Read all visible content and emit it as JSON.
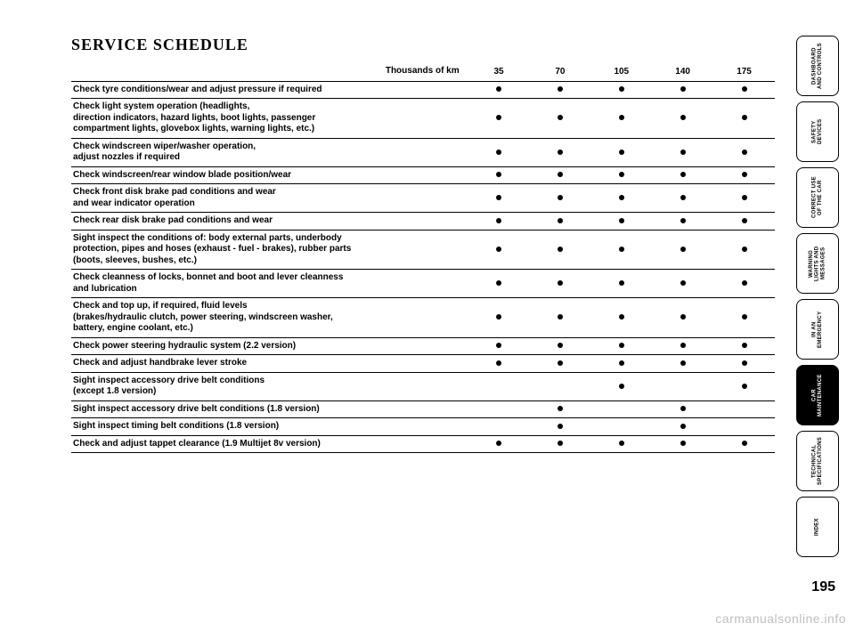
{
  "title": "SERVICE SCHEDULE",
  "header_label": "Thousands of km",
  "columns": [
    "35",
    "70",
    "105",
    "140",
    "175"
  ],
  "rows": [
    {
      "label": "Check tyre conditions/wear and adjust pressure if required",
      "marks": [
        1,
        1,
        1,
        1,
        1
      ]
    },
    {
      "label": "Check light system operation (headlights,\ndirection indicators, hazard lights, boot lights, passenger\ncompartment lights, glovebox lights, warning lights, etc.)",
      "marks": [
        1,
        1,
        1,
        1,
        1
      ]
    },
    {
      "label": "Check windscreen wiper/washer operation,\nadjust nozzles if required",
      "marks": [
        1,
        1,
        1,
        1,
        1
      ]
    },
    {
      "label": "Check windscreen/rear window blade position/wear",
      "marks": [
        1,
        1,
        1,
        1,
        1
      ]
    },
    {
      "label": "Check front disk brake pad conditions and wear\nand wear indicator operation",
      "marks": [
        1,
        1,
        1,
        1,
        1
      ]
    },
    {
      "label": "Check rear disk brake pad conditions and wear",
      "marks": [
        1,
        1,
        1,
        1,
        1
      ]
    },
    {
      "label": "Sight inspect the conditions of: body external parts, underbody\nprotection, pipes and hoses (exhaust - fuel - brakes), rubber parts\n(boots, sleeves, bushes, etc.)",
      "marks": [
        1,
        1,
        1,
        1,
        1
      ]
    },
    {
      "label": "Check cleanness of locks, bonnet and boot and lever cleanness\nand lubrication",
      "marks": [
        1,
        1,
        1,
        1,
        1
      ]
    },
    {
      "label": "Check and top up, if required, fluid levels\n(brakes/hydraulic clutch, power steering, windscreen washer,\nbattery, engine coolant, etc.)",
      "marks": [
        1,
        1,
        1,
        1,
        1
      ]
    },
    {
      "label": "Check power steering hydraulic system (2.2 version)",
      "marks": [
        1,
        1,
        1,
        1,
        1
      ]
    },
    {
      "label": "Check and adjust handbrake lever stroke",
      "marks": [
        1,
        1,
        1,
        1,
        1
      ]
    },
    {
      "label": "Sight inspect accessory drive belt conditions\n(except 1.8 version)",
      "marks": [
        0,
        0,
        1,
        0,
        1
      ]
    },
    {
      "label": "Sight inspect accessory drive belt conditions (1.8 version)",
      "marks": [
        0,
        1,
        0,
        1,
        0
      ]
    },
    {
      "label": "Sight inspect timing belt conditions (1.8 version)",
      "marks": [
        0,
        1,
        0,
        1,
        0
      ]
    },
    {
      "label": "Check and adjust tappet clearance (1.9 Multijet 8v version)",
      "marks": [
        1,
        1,
        1,
        1,
        1
      ]
    }
  ],
  "tabs": [
    {
      "label": "DASHBOARD\nAND CONTROLS",
      "active": false
    },
    {
      "label": "SAFETY\nDEVICES",
      "active": false
    },
    {
      "label": "CORRECT USE\nOF THE CAR",
      "active": false
    },
    {
      "label": "WARNING\nLIGHTS AND\nMESSAGES",
      "active": false
    },
    {
      "label": "IN AN\nEMERGENCY",
      "active": false
    },
    {
      "label": "CAR\nMAINTENANCE",
      "active": true
    },
    {
      "label": "TECHNICAL\nSPECIFICATIONS",
      "active": false
    },
    {
      "label": "INDEX",
      "active": false
    }
  ],
  "page_number": "195",
  "watermark": "carmanualsonline.info",
  "colors": {
    "text": "#000000",
    "background": "#ffffff",
    "watermark": "#bfbfbf"
  }
}
